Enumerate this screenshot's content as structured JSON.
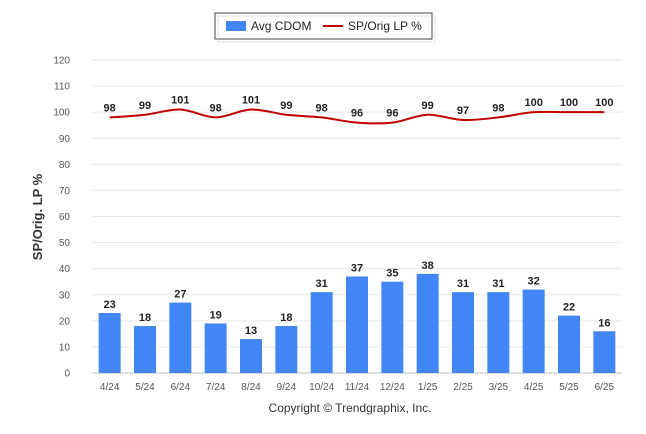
{
  "chart_data": {
    "type": "bar",
    "categories": [
      "4/24",
      "5/24",
      "6/24",
      "7/24",
      "8/24",
      "9/24",
      "10/24",
      "11/24",
      "12/24",
      "1/25",
      "2/25",
      "3/25",
      "4/25",
      "5/25",
      "6/25"
    ],
    "series": [
      {
        "name": "Avg CDOM",
        "kind": "bar",
        "color": "#4285f4",
        "values": [
          23,
          18,
          27,
          19,
          13,
          18,
          31,
          37,
          35,
          38,
          31,
          31,
          32,
          22,
          16
        ]
      },
      {
        "name": "SP/Orig LP %",
        "kind": "line",
        "color": "#c00000",
        "values": [
          98,
          99,
          101,
          98,
          101,
          99,
          98,
          96,
          96,
          99,
          97,
          98,
          100,
          100,
          100
        ]
      }
    ],
    "ylabel": "SP/Orig. LP %",
    "ylim": [
      0,
      120
    ],
    "yticks": [
      0,
      10,
      20,
      30,
      40,
      50,
      60,
      70,
      80,
      90,
      100,
      110,
      120
    ],
    "grid": true,
    "legend_position": "top-center"
  },
  "footer": "Copyright © Trendgraphix, Inc."
}
